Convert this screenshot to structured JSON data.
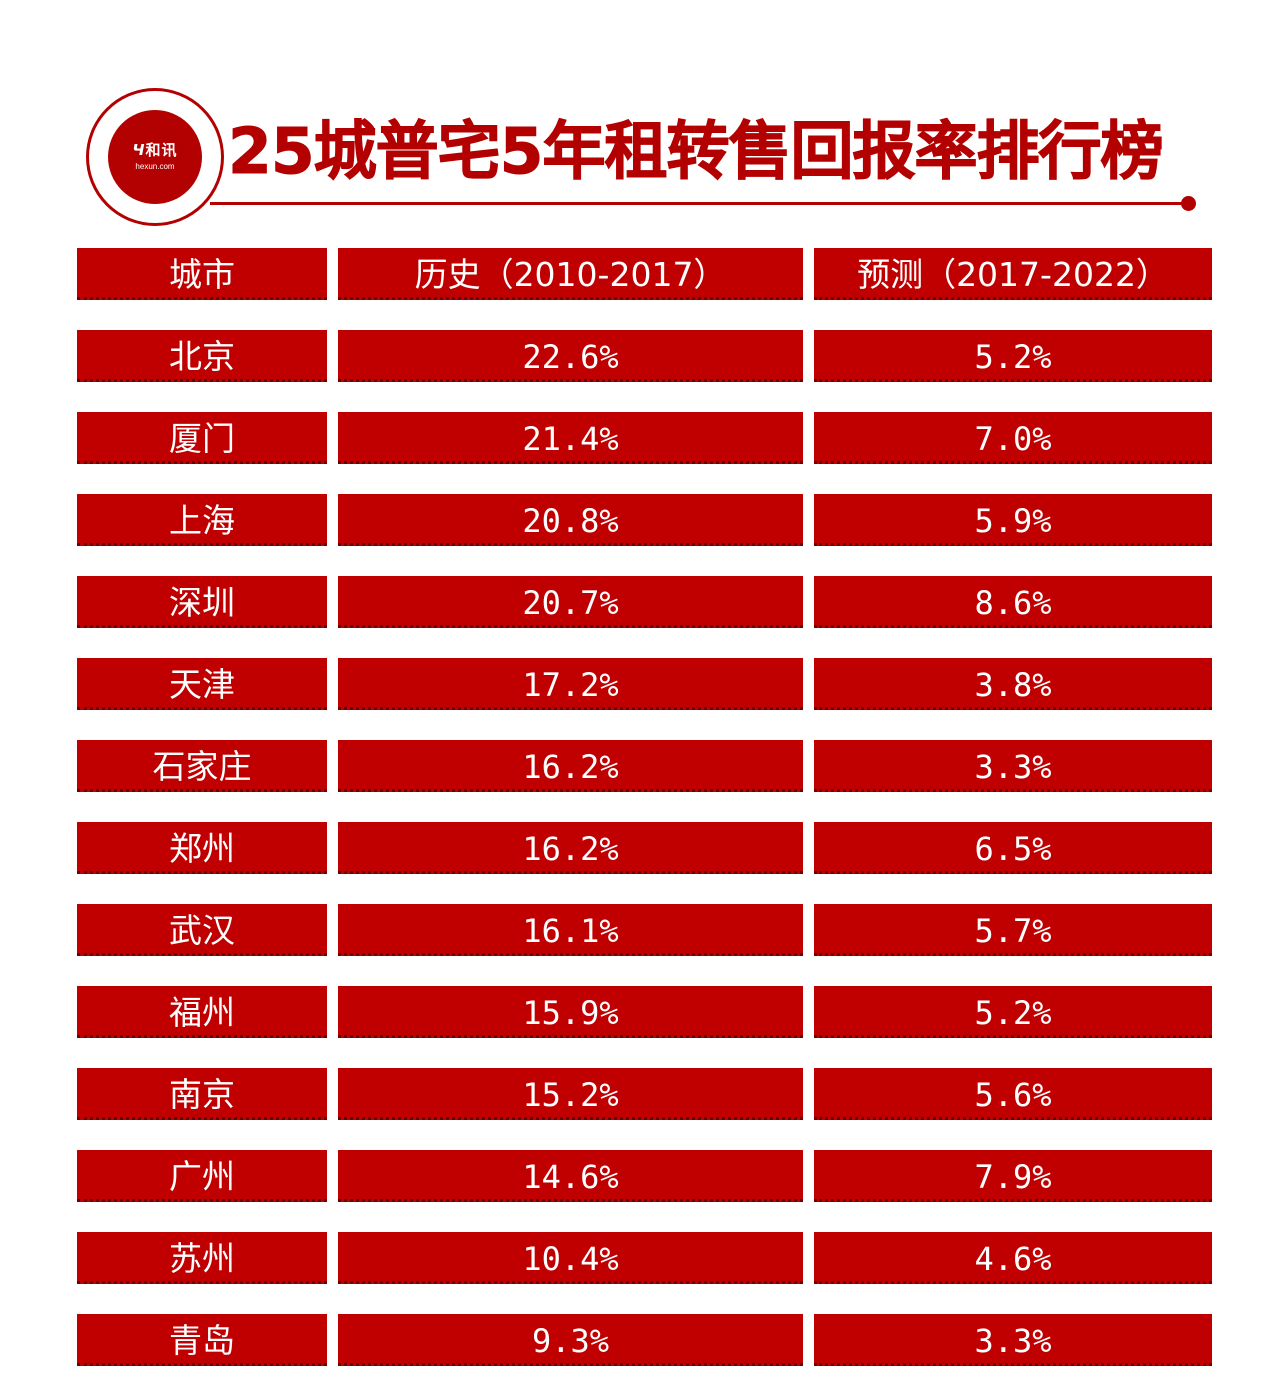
{
  "logo": {
    "mark": "Ч",
    "name": "和讯",
    "url_text": "hexun.com"
  },
  "title": "25城普宅5年租转售回报率排行榜",
  "colors": {
    "accent": "#c00000",
    "text_on_accent": "#ffffff",
    "background": "#ffffff"
  },
  "table": {
    "headers": [
      "城市",
      "历史（2010-2017）",
      "预测（2017-2022）"
    ],
    "rows": [
      {
        "city": "北京",
        "history": "22.6%",
        "forecast": "5.2%"
      },
      {
        "city": "厦门",
        "history": "21.4%",
        "forecast": "7.0%"
      },
      {
        "city": "上海",
        "history": "20.8%",
        "forecast": "5.9%"
      },
      {
        "city": "深圳",
        "history": "20.7%",
        "forecast": "8.6%"
      },
      {
        "city": "天津",
        "history": "17.2%",
        "forecast": "3.8%"
      },
      {
        "city": "石家庄",
        "history": "16.2%",
        "forecast": "3.3%"
      },
      {
        "city": "郑州",
        "history": "16.2%",
        "forecast": "6.5%"
      },
      {
        "city": "武汉",
        "history": "16.1%",
        "forecast": "5.7%"
      },
      {
        "city": "福州",
        "history": "15.9%",
        "forecast": "5.2%"
      },
      {
        "city": "南京",
        "history": "15.2%",
        "forecast": "5.6%"
      },
      {
        "city": "广州",
        "history": "14.6%",
        "forecast": "7.9%"
      },
      {
        "city": "苏州",
        "history": "10.4%",
        "forecast": "4.6%"
      },
      {
        "city": "青岛",
        "history": "9.3%",
        "forecast": "3.3%"
      }
    ]
  }
}
